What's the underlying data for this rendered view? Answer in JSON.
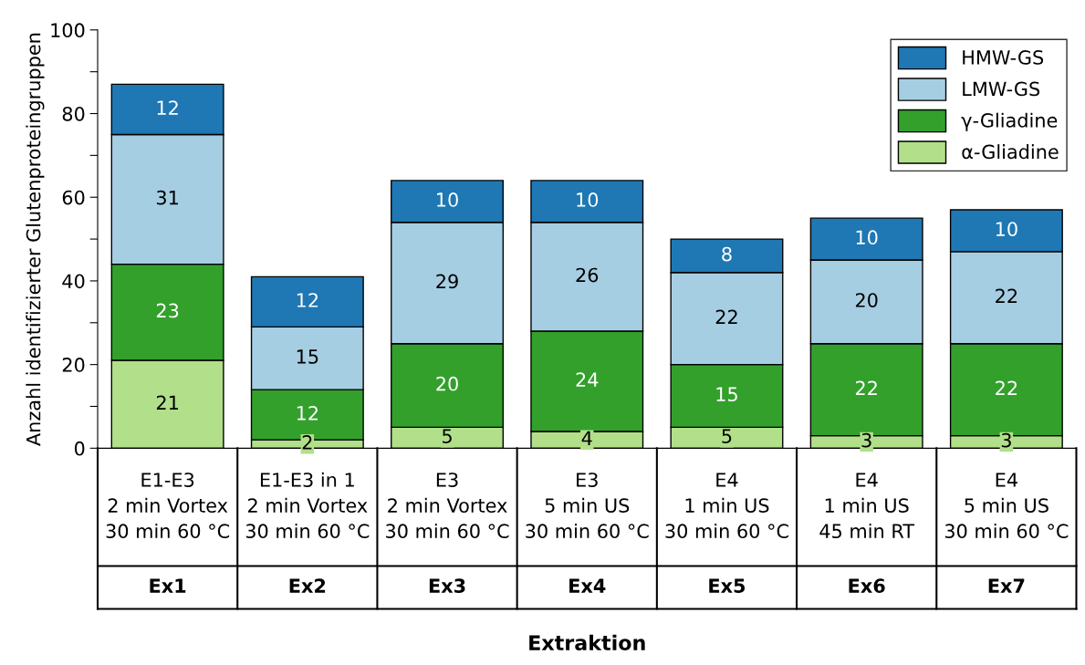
{
  "chart_data": {
    "type": "bar",
    "stacked": true,
    "ylabel": "Anzahl identifizierter Glutenproteingruppen",
    "annotations": [
      "Extraktion"
    ],
    "categories": [
      "E1-E3\n2 min Vortex\n30 min 60 °C\nEx1",
      "E1-E3 in 1\n2 min Vortex\n30 min 60 °C\nEx2",
      "E3\n2 min Vortex\n30 min 60 °C\nEx3",
      "E3\n5 min US\n30 min 60 °C\nEx4",
      "E4\n1 min US\n30 min 60 °C\nEx5",
      "E4\n1 min US\n45 min RT\nEx6",
      "E4\n5 min US\n30 min 60 °C\nEx7"
    ],
    "series": [
      {
        "name": "α-Gliadine",
        "color": "#b2df8a",
        "values": [
          21,
          2,
          5,
          4,
          5,
          3,
          3
        ]
      },
      {
        "name": "γ-Gliadine",
        "color": "#33a02c",
        "values": [
          23,
          12,
          20,
          24,
          15,
          22,
          22
        ]
      },
      {
        "name": "LMW-GS",
        "color": "#a6cee3",
        "values": [
          31,
          15,
          29,
          26,
          22,
          20,
          22
        ]
      },
      {
        "name": "HMW-GS",
        "color": "#1f78b4",
        "values": [
          12,
          12,
          10,
          10,
          8,
          10,
          10
        ]
      }
    ],
    "ylim": [
      0,
      100
    ],
    "yticks": [
      0,
      {
        "value": 10,
        "label": null
      },
      20,
      {
        "value": 30,
        "label": null
      },
      40,
      {
        "value": 50,
        "label": null
      },
      60,
      {
        "value": 70,
        "label": null
      },
      80,
      {
        "value": 90,
        "label": null
      },
      100
    ],
    "data_labels": true,
    "legend": "top right",
    "grid": false
  }
}
